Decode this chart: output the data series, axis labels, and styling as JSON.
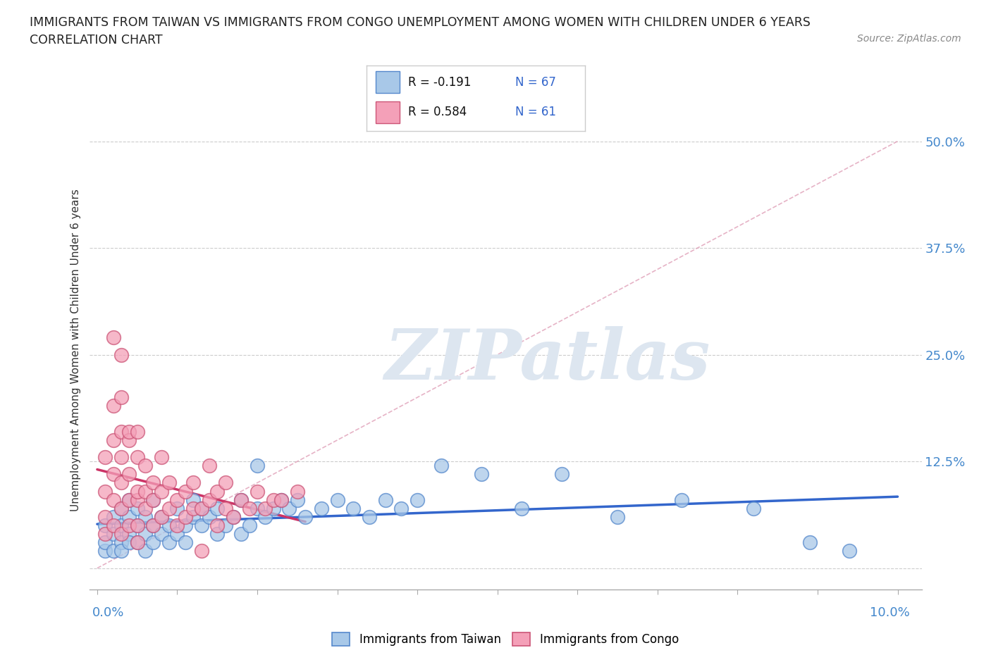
{
  "title_line1": "IMMIGRANTS FROM TAIWAN VS IMMIGRANTS FROM CONGO UNEMPLOYMENT AMONG WOMEN WITH CHILDREN UNDER 6 YEARS",
  "title_line2": "CORRELATION CHART",
  "source": "Source: ZipAtlas.com",
  "ylabel": "Unemployment Among Women with Children Under 6 years",
  "y_ticks": [
    0.0,
    0.125,
    0.25,
    0.375,
    0.5
  ],
  "y_tick_labels": [
    "",
    "12.5%",
    "25.0%",
    "37.5%",
    "50.0%"
  ],
  "x_lim": [
    -0.001,
    0.103
  ],
  "y_lim": [
    -0.025,
    0.535
  ],
  "legend_taiwan": "Immigrants from Taiwan",
  "legend_congo": "Immigrants from Congo",
  "R_taiwan": -0.191,
  "N_taiwan": 67,
  "R_congo": 0.584,
  "N_congo": 61,
  "taiwan_color": "#a8c8e8",
  "taiwan_edge": "#5588cc",
  "congo_color": "#f4a0b8",
  "congo_edge": "#cc5577",
  "regression_taiwan_color": "#3366cc",
  "regression_congo_color": "#cc3366",
  "taiwan_scatter": [
    [
      0.001,
      0.05
    ],
    [
      0.001,
      0.02
    ],
    [
      0.001,
      0.03
    ],
    [
      0.002,
      0.04
    ],
    [
      0.002,
      0.02
    ],
    [
      0.002,
      0.06
    ],
    [
      0.003,
      0.03
    ],
    [
      0.003,
      0.05
    ],
    [
      0.003,
      0.07
    ],
    [
      0.003,
      0.02
    ],
    [
      0.004,
      0.04
    ],
    [
      0.004,
      0.06
    ],
    [
      0.004,
      0.08
    ],
    [
      0.004,
      0.03
    ],
    [
      0.005,
      0.03
    ],
    [
      0.005,
      0.05
    ],
    [
      0.005,
      0.07
    ],
    [
      0.006,
      0.04
    ],
    [
      0.006,
      0.06
    ],
    [
      0.006,
      0.02
    ],
    [
      0.007,
      0.03
    ],
    [
      0.007,
      0.05
    ],
    [
      0.007,
      0.08
    ],
    [
      0.008,
      0.04
    ],
    [
      0.008,
      0.06
    ],
    [
      0.009,
      0.03
    ],
    [
      0.009,
      0.05
    ],
    [
      0.01,
      0.04
    ],
    [
      0.01,
      0.07
    ],
    [
      0.011,
      0.05
    ],
    [
      0.011,
      0.03
    ],
    [
      0.012,
      0.06
    ],
    [
      0.012,
      0.08
    ],
    [
      0.013,
      0.05
    ],
    [
      0.013,
      0.07
    ],
    [
      0.014,
      0.06
    ],
    [
      0.015,
      0.04
    ],
    [
      0.015,
      0.07
    ],
    [
      0.016,
      0.05
    ],
    [
      0.017,
      0.06
    ],
    [
      0.018,
      0.08
    ],
    [
      0.018,
      0.04
    ],
    [
      0.019,
      0.05
    ],
    [
      0.02,
      0.07
    ],
    [
      0.02,
      0.12
    ],
    [
      0.021,
      0.06
    ],
    [
      0.022,
      0.07
    ],
    [
      0.023,
      0.08
    ],
    [
      0.024,
      0.07
    ],
    [
      0.025,
      0.08
    ],
    [
      0.026,
      0.06
    ],
    [
      0.028,
      0.07
    ],
    [
      0.03,
      0.08
    ],
    [
      0.032,
      0.07
    ],
    [
      0.034,
      0.06
    ],
    [
      0.036,
      0.08
    ],
    [
      0.038,
      0.07
    ],
    [
      0.04,
      0.08
    ],
    [
      0.043,
      0.12
    ],
    [
      0.048,
      0.11
    ],
    [
      0.053,
      0.07
    ],
    [
      0.058,
      0.11
    ],
    [
      0.065,
      0.06
    ],
    [
      0.073,
      0.08
    ],
    [
      0.082,
      0.07
    ],
    [
      0.089,
      0.03
    ],
    [
      0.094,
      0.02
    ]
  ],
  "congo_scatter": [
    [
      0.001,
      0.04
    ],
    [
      0.001,
      0.06
    ],
    [
      0.001,
      0.09
    ],
    [
      0.001,
      0.13
    ],
    [
      0.002,
      0.05
    ],
    [
      0.002,
      0.08
    ],
    [
      0.002,
      0.11
    ],
    [
      0.002,
      0.15
    ],
    [
      0.002,
      0.19
    ],
    [
      0.002,
      0.27
    ],
    [
      0.003,
      0.04
    ],
    [
      0.003,
      0.07
    ],
    [
      0.003,
      0.1
    ],
    [
      0.003,
      0.13
    ],
    [
      0.003,
      0.16
    ],
    [
      0.003,
      0.2
    ],
    [
      0.003,
      0.25
    ],
    [
      0.004,
      0.05
    ],
    [
      0.004,
      0.08
    ],
    [
      0.004,
      0.11
    ],
    [
      0.004,
      0.15
    ],
    [
      0.004,
      0.16
    ],
    [
      0.005,
      0.05
    ],
    [
      0.005,
      0.08
    ],
    [
      0.005,
      0.09
    ],
    [
      0.005,
      0.13
    ],
    [
      0.005,
      0.16
    ],
    [
      0.005,
      0.03
    ],
    [
      0.006,
      0.07
    ],
    [
      0.006,
      0.09
    ],
    [
      0.006,
      0.12
    ],
    [
      0.007,
      0.05
    ],
    [
      0.007,
      0.08
    ],
    [
      0.007,
      0.1
    ],
    [
      0.008,
      0.06
    ],
    [
      0.008,
      0.09
    ],
    [
      0.008,
      0.13
    ],
    [
      0.009,
      0.07
    ],
    [
      0.009,
      0.1
    ],
    [
      0.01,
      0.05
    ],
    [
      0.01,
      0.08
    ],
    [
      0.011,
      0.06
    ],
    [
      0.011,
      0.09
    ],
    [
      0.012,
      0.07
    ],
    [
      0.012,
      0.1
    ],
    [
      0.013,
      0.07
    ],
    [
      0.013,
      0.02
    ],
    [
      0.014,
      0.08
    ],
    [
      0.014,
      0.12
    ],
    [
      0.015,
      0.05
    ],
    [
      0.015,
      0.09
    ],
    [
      0.016,
      0.07
    ],
    [
      0.016,
      0.1
    ],
    [
      0.017,
      0.06
    ],
    [
      0.018,
      0.08
    ],
    [
      0.019,
      0.07
    ],
    [
      0.02,
      0.09
    ],
    [
      0.021,
      0.07
    ],
    [
      0.022,
      0.08
    ],
    [
      0.023,
      0.08
    ],
    [
      0.025,
      0.09
    ]
  ],
  "dashed_line_x": [
    0.0,
    0.1
  ],
  "dashed_line_y": [
    0.0,
    0.5
  ],
  "dashed_color": "#e0a0b8",
  "watermark_text": "ZIPatlas",
  "watermark_color": "#dde6f0"
}
